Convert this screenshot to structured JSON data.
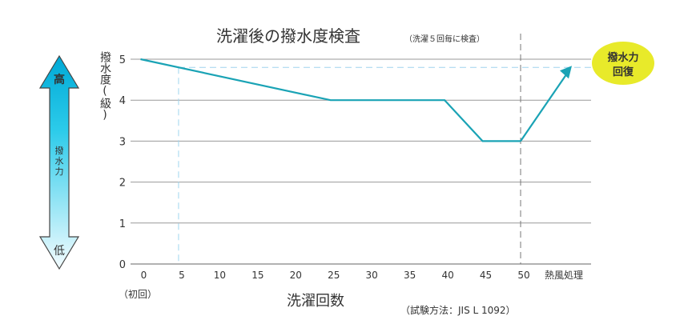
{
  "chart_data": {
    "type": "line",
    "title": "洗濯後の撥水度検査",
    "subtitle": "（洗濯５回毎に検査）",
    "xlabel": "洗濯回数",
    "ylabel": "撥水度(級)",
    "x_ticks": [
      "0",
      "5",
      "10",
      "15",
      "20",
      "25",
      "30",
      "35",
      "40",
      "45",
      "50"
    ],
    "x_first_note": "（初回）",
    "x_extra_label": "熱風処理",
    "y_ticks": [
      "0",
      "1",
      "2",
      "3",
      "4",
      "5"
    ],
    "ylim": [
      0,
      5
    ],
    "xlim": [
      0,
      50
    ],
    "grid": true,
    "series": [
      {
        "points": [
          [
            0,
            5
          ],
          [
            25,
            4
          ],
          [
            40,
            4
          ],
          [
            45,
            3
          ],
          [
            50,
            3
          ]
        ],
        "color": "#1aa3b5"
      }
    ],
    "recovery_value": 4.8,
    "reference_x": 5,
    "reference_value": 4.8,
    "callout": [
      "撥水力",
      "回復"
    ],
    "callout_color": "#e8ea2a",
    "method_note": "（試験方法：JIS L 1092）",
    "scale_arrow": {
      "high": "高",
      "low": "低",
      "label": "撥水力"
    },
    "extra_label_color": "#e8333a"
  }
}
